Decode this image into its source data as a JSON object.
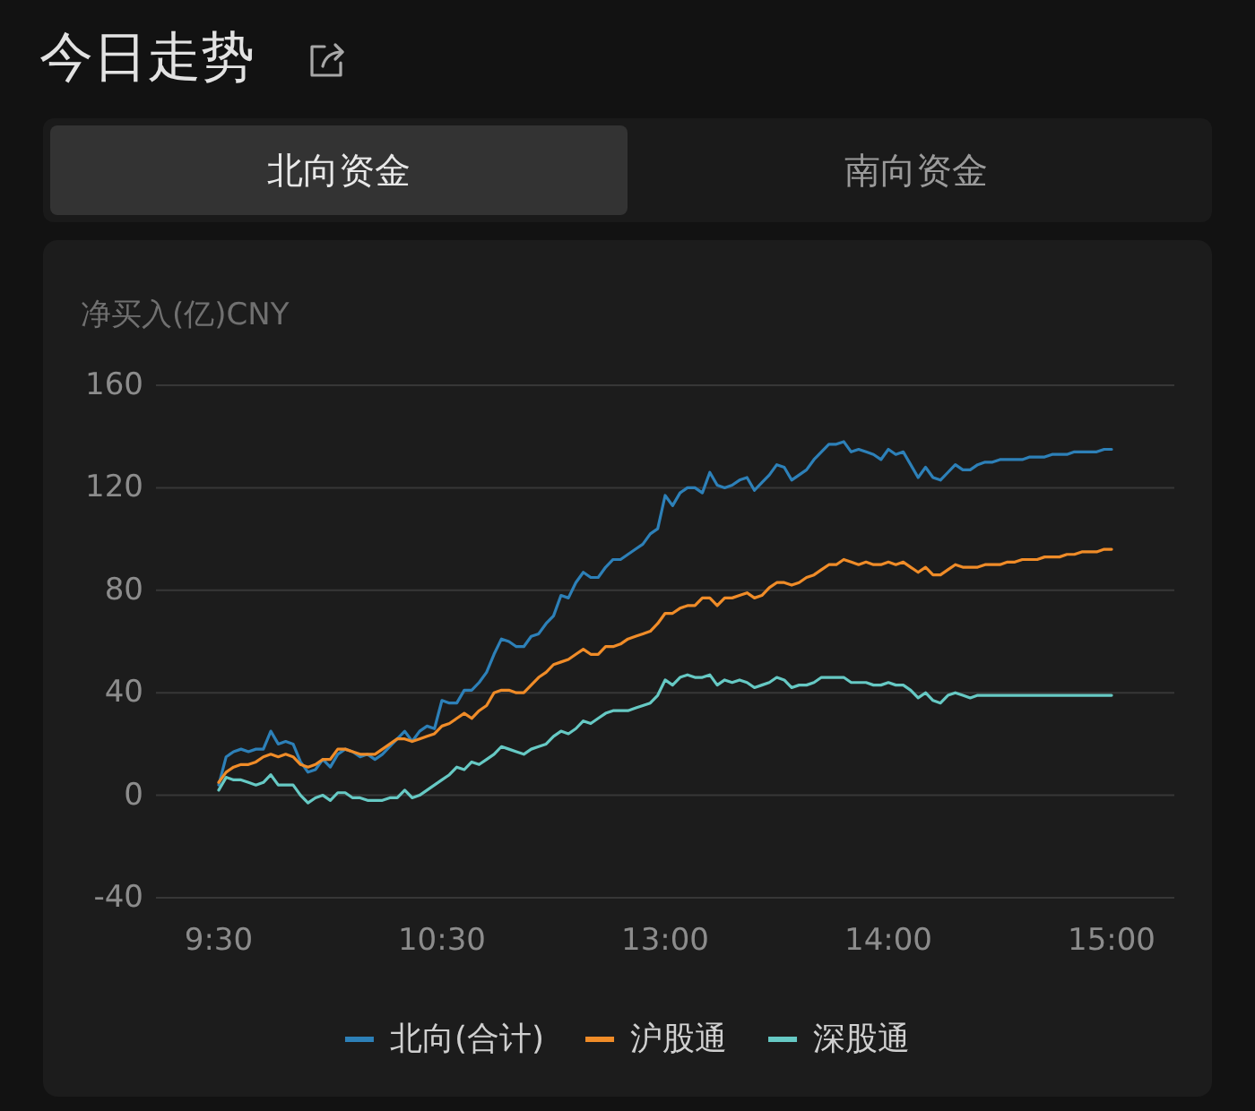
{
  "chart_data": {
    "type": "line",
    "title": "今日走势",
    "annotations": [
      "北向资金",
      "南向资金"
    ],
    "ylabel": "净买入(亿)CNY",
    "categories": [
      "9:30",
      null,
      null,
      null,
      null,
      null,
      null,
      null,
      null,
      null,
      null,
      null,
      null,
      null,
      null,
      null,
      null,
      null,
      null,
      null,
      null,
      null,
      null,
      null,
      null,
      null,
      null,
      null,
      null,
      null,
      "10:30",
      null,
      null,
      null,
      null,
      null,
      null,
      null,
      null,
      null,
      null,
      null,
      null,
      null,
      null,
      null,
      null,
      null,
      null,
      null,
      null,
      null,
      null,
      null,
      null,
      null,
      null,
      null,
      null,
      null,
      "13:00",
      null,
      null,
      null,
      null,
      null,
      null,
      null,
      null,
      null,
      null,
      null,
      null,
      null,
      null,
      null,
      null,
      null,
      null,
      null,
      null,
      null,
      null,
      null,
      null,
      null,
      null,
      null,
      null,
      null,
      "14:00",
      null,
      null,
      null,
      null,
      null,
      null,
      null,
      null,
      null,
      null,
      null,
      null,
      null,
      null,
      null,
      null,
      null,
      null,
      null,
      null,
      null,
      null,
      null,
      null,
      null,
      null,
      null,
      null,
      null,
      "15:00"
    ],
    "ylim": [
      -40,
      160
    ],
    "yticks": [
      -40,
      0,
      40,
      80,
      120,
      160
    ],
    "grid": "y",
    "legend": "bottom",
    "series": [
      {
        "name": "北向(合计)",
        "color": "#2d80b8",
        "values": [
          4,
          15,
          17,
          18,
          17,
          18,
          18,
          25,
          20,
          21,
          20,
          13,
          9,
          10,
          14,
          11,
          16,
          18,
          17,
          15,
          16,
          14,
          16,
          19,
          22,
          25,
          21,
          25,
          27,
          26,
          37,
          36,
          36,
          41,
          41,
          44,
          48,
          55,
          61,
          60,
          58,
          58,
          62,
          63,
          67,
          70,
          78,
          77,
          83,
          87,
          85,
          85,
          89,
          92,
          92,
          94,
          96,
          98,
          102,
          104,
          117,
          113,
          118,
          120,
          120,
          118,
          126,
          121,
          120,
          121,
          123,
          124,
          119,
          122,
          125,
          129,
          128,
          123,
          125,
          127,
          131,
          134,
          137,
          137,
          138,
          134,
          135,
          134,
          133,
          131,
          135,
          133,
          134,
          129,
          124,
          128,
          124,
          123,
          126,
          129,
          127,
          127,
          129,
          130,
          130,
          131,
          131,
          131,
          131,
          132,
          132,
          132,
          133,
          133,
          133,
          134,
          134,
          134,
          134,
          135,
          135
        ]
      },
      {
        "name": "沪股通",
        "color": "#f08c28",
        "values": [
          5,
          9,
          11,
          12,
          12,
          13,
          15,
          16,
          15,
          16,
          15,
          12,
          11,
          12,
          14,
          14,
          18,
          18,
          17,
          16,
          16,
          16,
          18,
          20,
          22,
          22,
          21,
          22,
          23,
          24,
          27,
          28,
          30,
          32,
          30,
          33,
          35,
          40,
          41,
          41,
          40,
          40,
          43,
          46,
          48,
          51,
          52,
          53,
          55,
          57,
          55,
          55,
          58,
          58,
          59,
          61,
          62,
          63,
          64,
          67,
          71,
          71,
          73,
          74,
          74,
          77,
          77,
          74,
          77,
          77,
          78,
          79,
          77,
          78,
          81,
          83,
          83,
          82,
          83,
          85,
          86,
          88,
          90,
          90,
          92,
          91,
          90,
          91,
          90,
          90,
          91,
          90,
          91,
          89,
          87,
          89,
          86,
          86,
          88,
          90,
          89,
          89,
          89,
          90,
          90,
          90,
          91,
          91,
          92,
          92,
          92,
          93,
          93,
          93,
          94,
          94,
          95,
          95,
          95,
          96,
          96
        ]
      },
      {
        "name": "深股通",
        "color": "#66c9c4",
        "values": [
          2,
          7,
          6,
          6,
          5,
          4,
          5,
          8,
          4,
          4,
          4,
          0,
          -3,
          -1,
          0,
          -2,
          1,
          1,
          -1,
          -1,
          -2,
          -2,
          -2,
          -1,
          -1,
          2,
          -1,
          0,
          2,
          4,
          6,
          8,
          11,
          10,
          13,
          12,
          14,
          16,
          19,
          18,
          17,
          16,
          18,
          19,
          20,
          23,
          25,
          24,
          26,
          29,
          28,
          30,
          32,
          33,
          33,
          33,
          34,
          35,
          36,
          39,
          45,
          43,
          46,
          47,
          46,
          46,
          47,
          43,
          45,
          44,
          45,
          44,
          42,
          43,
          44,
          46,
          45,
          42,
          43,
          43,
          44,
          46,
          46,
          46,
          46,
          44,
          44,
          44,
          43,
          43,
          44,
          43,
          43,
          41,
          38,
          40,
          37,
          36,
          39,
          40,
          39,
          38,
          39,
          39,
          39,
          39,
          39,
          39,
          39,
          39,
          39,
          39,
          39,
          39,
          39,
          39,
          39,
          39,
          39,
          39,
          39
        ]
      }
    ]
  }
}
